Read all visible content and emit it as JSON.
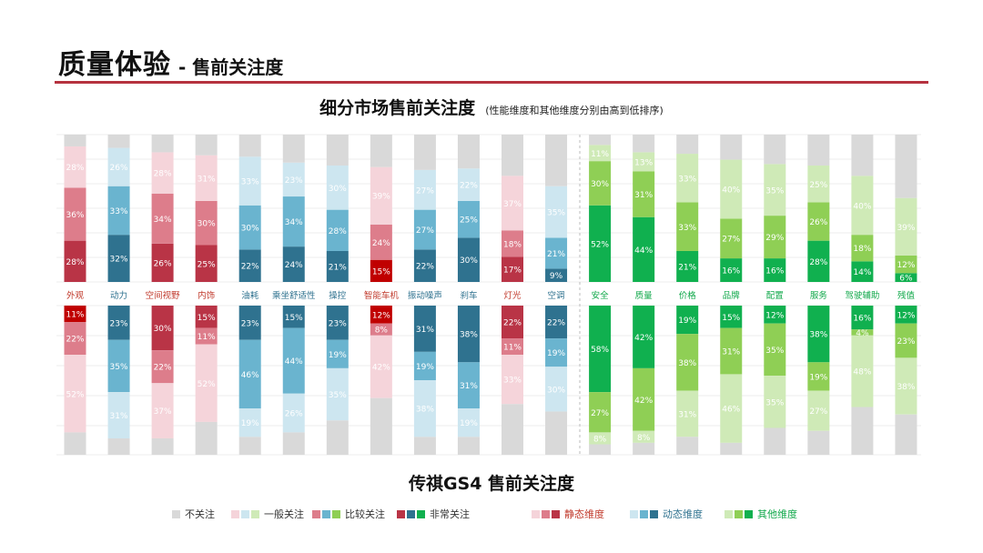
{
  "header": {
    "title": "质量体验",
    "subtitle": "- 售前关注度"
  },
  "top_title": "细分市场售前关注度",
  "top_note": "(性能维度和其他维度分别由高到低排序)",
  "bottom_title": "传祺GS4 售前关注度",
  "colors": {
    "not_care": "#d9d9d9",
    "static": [
      "#f5d4da",
      "#dd7d8b",
      "#b93446"
    ],
    "static_peak": "#c00000",
    "dynamic": [
      "#cde6f0",
      "#6ab4cf",
      "#2f728f"
    ],
    "other": [
      "#cfeab7",
      "#8fcf55",
      "#10b04f"
    ],
    "label_static": "#c0392b",
    "label_dynamic": "#2f728f",
    "label_other": "#10a84a"
  },
  "legend": {
    "not_care": "不关注",
    "general": "一般关注",
    "fairly": "比较关注",
    "very": "非常关注",
    "static": "静态维度",
    "dynamic": "动态维度",
    "other": "其他维度"
  },
  "chart_data": [
    {
      "type": "bar",
      "title": "细分市场售前关注度",
      "stacking": "100%",
      "categories": [
        "外观",
        "动力",
        "空间视野",
        "内饰",
        "油耗",
        "乘坐舒适性",
        "操控",
        "智能车机",
        "振动噪声",
        "刹车",
        "灯光",
        "空调",
        "安全",
        "质量",
        "价格",
        "品牌",
        "配置",
        "服务",
        "驾驶辅助",
        "残值"
      ],
      "dimension": [
        "static",
        "dynamic",
        "static",
        "static",
        "dynamic",
        "dynamic",
        "dynamic",
        "static",
        "dynamic",
        "dynamic",
        "static",
        "dynamic",
        "other",
        "other",
        "other",
        "other",
        "other",
        "other",
        "other",
        "other"
      ],
      "series": [
        {
          "name": "非常关注",
          "values": [
            28,
            32,
            26,
            25,
            22,
            24,
            21,
            15,
            22,
            30,
            17,
            9,
            52,
            44,
            21,
            16,
            16,
            28,
            14,
            6
          ]
        },
        {
          "name": "比较关注",
          "values": [
            36,
            33,
            34,
            30,
            30,
            34,
            28,
            24,
            27,
            25,
            18,
            21,
            30,
            31,
            33,
            27,
            29,
            26,
            18,
            12
          ]
        },
        {
          "name": "一般关注",
          "values": [
            28,
            26,
            28,
            31,
            33,
            23,
            30,
            39,
            27,
            22,
            37,
            35,
            11,
            13,
            33,
            40,
            35,
            25,
            40,
            39
          ]
        },
        {
          "name": "不关注",
          "values": [
            8,
            9,
            12,
            14,
            15,
            19,
            21,
            22,
            24,
            23,
            28,
            35,
            7,
            12,
            13,
            17,
            20,
            21,
            28,
            43
          ]
        }
      ]
    },
    {
      "type": "bar",
      "title": "传祺GS4 售前关注度",
      "stacking": "100%",
      "categories": [
        "外观",
        "动力",
        "空间视野",
        "内饰",
        "油耗",
        "乘坐舒适性",
        "操控",
        "智能车机",
        "振动噪声",
        "刹车",
        "灯光",
        "空调",
        "安全",
        "质量",
        "价格",
        "品牌",
        "配置",
        "服务",
        "驾驶辅助",
        "残值"
      ],
      "series": [
        {
          "name": "非常关注",
          "values": [
            11,
            23,
            30,
            15,
            23,
            15,
            23,
            12,
            31,
            38,
            22,
            22,
            58,
            42,
            19,
            15,
            12,
            38,
            16,
            12
          ]
        },
        {
          "name": "比较关注",
          "values": [
            22,
            35,
            22,
            11,
            46,
            44,
            19,
            8,
            19,
            31,
            11,
            19,
            27,
            42,
            38,
            31,
            35,
            19,
            4,
            23
          ]
        },
        {
          "name": "一般关注",
          "values": [
            52,
            31,
            37,
            52,
            19,
            26,
            35,
            42,
            38,
            19,
            33,
            30,
            8,
            8,
            31,
            46,
            35,
            27,
            48,
            38
          ]
        },
        {
          "name": "不关注",
          "values": [
            15,
            11,
            11,
            22,
            12,
            15,
            23,
            38,
            12,
            12,
            34,
            29,
            7,
            8,
            12,
            8,
            18,
            16,
            32,
            27
          ]
        }
      ]
    }
  ]
}
